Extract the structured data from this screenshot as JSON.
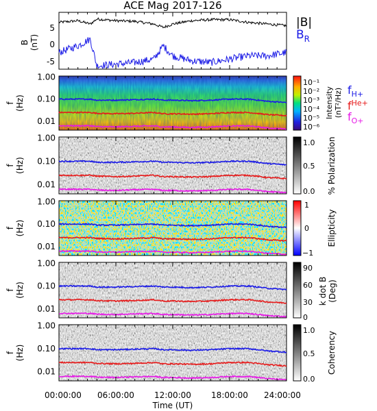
{
  "title": "ACE Mag 2017-126",
  "x_axis": {
    "label": "Time (UT)",
    "ticks": [
      "00:00:00",
      "06:00:00",
      "12:00:00",
      "18:00:00",
      "24:00:00"
    ],
    "range_hours": [
      0,
      24
    ]
  },
  "colors": {
    "total_field": "#000000",
    "radial_field": "#1a1ae6",
    "f_h": "#1a1ae6",
    "f_he": "#e61a1a",
    "f_o": "#e619e6"
  },
  "legend": {
    "total": "|B|",
    "radial_main": "B",
    "radial_sub": "R",
    "fh_main": "f",
    "fh_sub": "H+",
    "fhe_main": "f",
    "fhe_sup": "He+",
    "fo_main": "f",
    "fo_sub": "O+"
  },
  "panels": {
    "field": {
      "ylabel_line1": "B",
      "ylabel_line2": "(nT)",
      "yticks": [
        "5",
        "0",
        "-5"
      ]
    },
    "freq_yticks": [
      "1.00",
      "0.10",
      "0.01"
    ],
    "freq_ylabel_line1": "f",
    "freq_ylabel_line2": "(Hz)",
    "intensity": {
      "bar_label_line1": "Intensity",
      "bar_label_line2": "(nT²/Hz)",
      "bar_ticks": [
        "10⁻¹",
        "10⁻²",
        "10⁻³",
        "10⁻⁴",
        "10⁻⁵",
        "10⁻⁶"
      ]
    },
    "polarization": {
      "bar_label": "% Polarization",
      "bar_ticks": [
        "1.0",
        "0.5",
        "0.0"
      ]
    },
    "ellipticity": {
      "bar_label": "Ellipticity",
      "bar_ticks": [
        "1",
        "0",
        "−1"
      ]
    },
    "kdotb": {
      "bar_label_line1": "k dot B",
      "bar_label_line2": "(Deg)",
      "bar_ticks": [
        "90",
        "60",
        "30",
        "0"
      ]
    },
    "coherency": {
      "bar_label": "Coherency",
      "bar_ticks": [
        "1.0",
        "0.5",
        "0.0"
      ]
    }
  },
  "chart_data": {
    "type": "line",
    "title": "ACE Mag 2017-126",
    "xlabel": "Time (UT)",
    "x_hours": [
      0,
      2,
      3.3,
      4,
      6,
      8,
      10,
      11,
      12,
      14,
      16,
      18,
      20,
      22,
      24
    ],
    "series": [
      {
        "name": "|B|",
        "values": [
          7,
          7.5,
          6.5,
          8,
          7.5,
          7.3,
          6.5,
          5.5,
          6.5,
          7.5,
          7.8,
          7.8,
          7,
          6.5,
          6
        ]
      },
      {
        "name": "B_R",
        "values": [
          -2,
          0,
          2,
          -6,
          -5.5,
          -5,
          -4,
          0,
          -3,
          -4.5,
          -5,
          -4,
          -3,
          -3,
          -2
        ]
      },
      {
        "name": "f_H+ (Hz)",
        "values": [
          0.1,
          0.1,
          0.1,
          0.09,
          0.09,
          0.095,
          0.1,
          0.09,
          0.09,
          0.085,
          0.09,
          0.1,
          0.1,
          0.08,
          0.07
        ]
      },
      {
        "name": "f_He+ (Hz)",
        "values": [
          0.025,
          0.025,
          0.025,
          0.023,
          0.022,
          0.023,
          0.025,
          0.022,
          0.022,
          0.021,
          0.022,
          0.025,
          0.025,
          0.02,
          0.018
        ]
      },
      {
        "name": "f_O+ (Hz)",
        "values": [
          0.0063,
          0.0063,
          0.0063,
          0.0058,
          0.0056,
          0.006,
          0.0062,
          0.0056,
          0.0056,
          0.0053,
          0.0056,
          0.0062,
          0.0062,
          0.005,
          0.0045
        ]
      }
    ],
    "panels": [
      {
        "name": "B (nT)",
        "ylim": [
          -7,
          10
        ]
      },
      {
        "name": "Intensity",
        "ylim": [
          0.004,
          1.1
        ],
        "yscale": "log",
        "colorbar_range": [
          1e-06,
          0.1
        ]
      },
      {
        "name": "% Polarization",
        "ylim": [
          0.004,
          1.1
        ],
        "yscale": "log",
        "colorbar_range": [
          0,
          1
        ]
      },
      {
        "name": "Ellipticity",
        "ylim": [
          0.004,
          1.1
        ],
        "yscale": "log",
        "colorbar_range": [
          -1,
          1
        ]
      },
      {
        "name": "k dot B (Deg)",
        "ylim": [
          0.004,
          1.1
        ],
        "yscale": "log",
        "colorbar_range": [
          0,
          90
        ]
      },
      {
        "name": "Coherency",
        "ylim": [
          0.004,
          1.1
        ],
        "yscale": "log",
        "colorbar_range": [
          0,
          1
        ]
      }
    ]
  }
}
